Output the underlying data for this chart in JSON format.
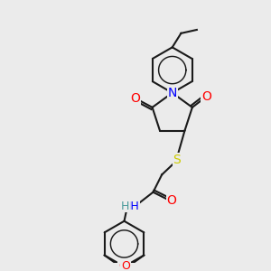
{
  "bg_color": "#ebebeb",
  "bond_color": "#1a1a1a",
  "bond_width": 1.5,
  "atom_colors": {
    "O": "#ff0000",
    "N": "#0000ff",
    "S": "#cccc00",
    "H": "#4a9a9a",
    "C": "#1a1a1a"
  },
  "font_size": 9,
  "font_size_small": 8
}
